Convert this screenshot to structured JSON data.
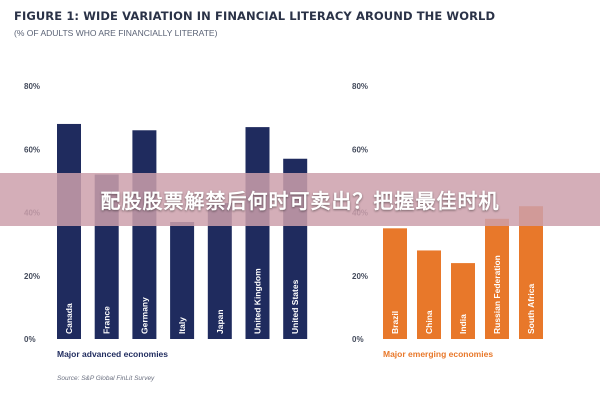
{
  "figure": {
    "title": "FIGURE 1: WIDE VARIATION IN FINANCIAL LITERACY AROUND THE WORLD",
    "subtitle": "(% OF ADULTS WHO ARE FINANCIALLY LITERATE)",
    "source": "Source: S&P Global FinLit Survey"
  },
  "banner": {
    "text": "配股股票解禁后何时可卖出？把握最佳时机"
  },
  "chart_data": [
    {
      "type": "bar",
      "group_label": "Major advanced economies",
      "color": "#1f2b5e",
      "label_color": "#1f2b5e",
      "categories": [
        "Canada",
        "France",
        "Germany",
        "Italy",
        "Japan",
        "United Kingdom",
        "United States"
      ],
      "values": [
        68,
        52,
        66,
        37,
        43,
        67,
        57
      ],
      "ylim": [
        0,
        80
      ],
      "yticks": [
        "0%",
        "20%",
        "40%",
        "60%",
        "80%"
      ]
    },
    {
      "type": "bar",
      "group_label": "Major emerging economies",
      "color": "#e8782a",
      "label_color": "#e8782a",
      "categories": [
        "Brazil",
        "China",
        "India",
        "Russian Federation",
        "South Africa"
      ],
      "values": [
        35,
        28,
        24,
        38,
        42
      ],
      "ylim": [
        0,
        80
      ],
      "yticks": [
        "0%",
        "20%",
        "40%",
        "60%",
        "80%"
      ]
    }
  ]
}
